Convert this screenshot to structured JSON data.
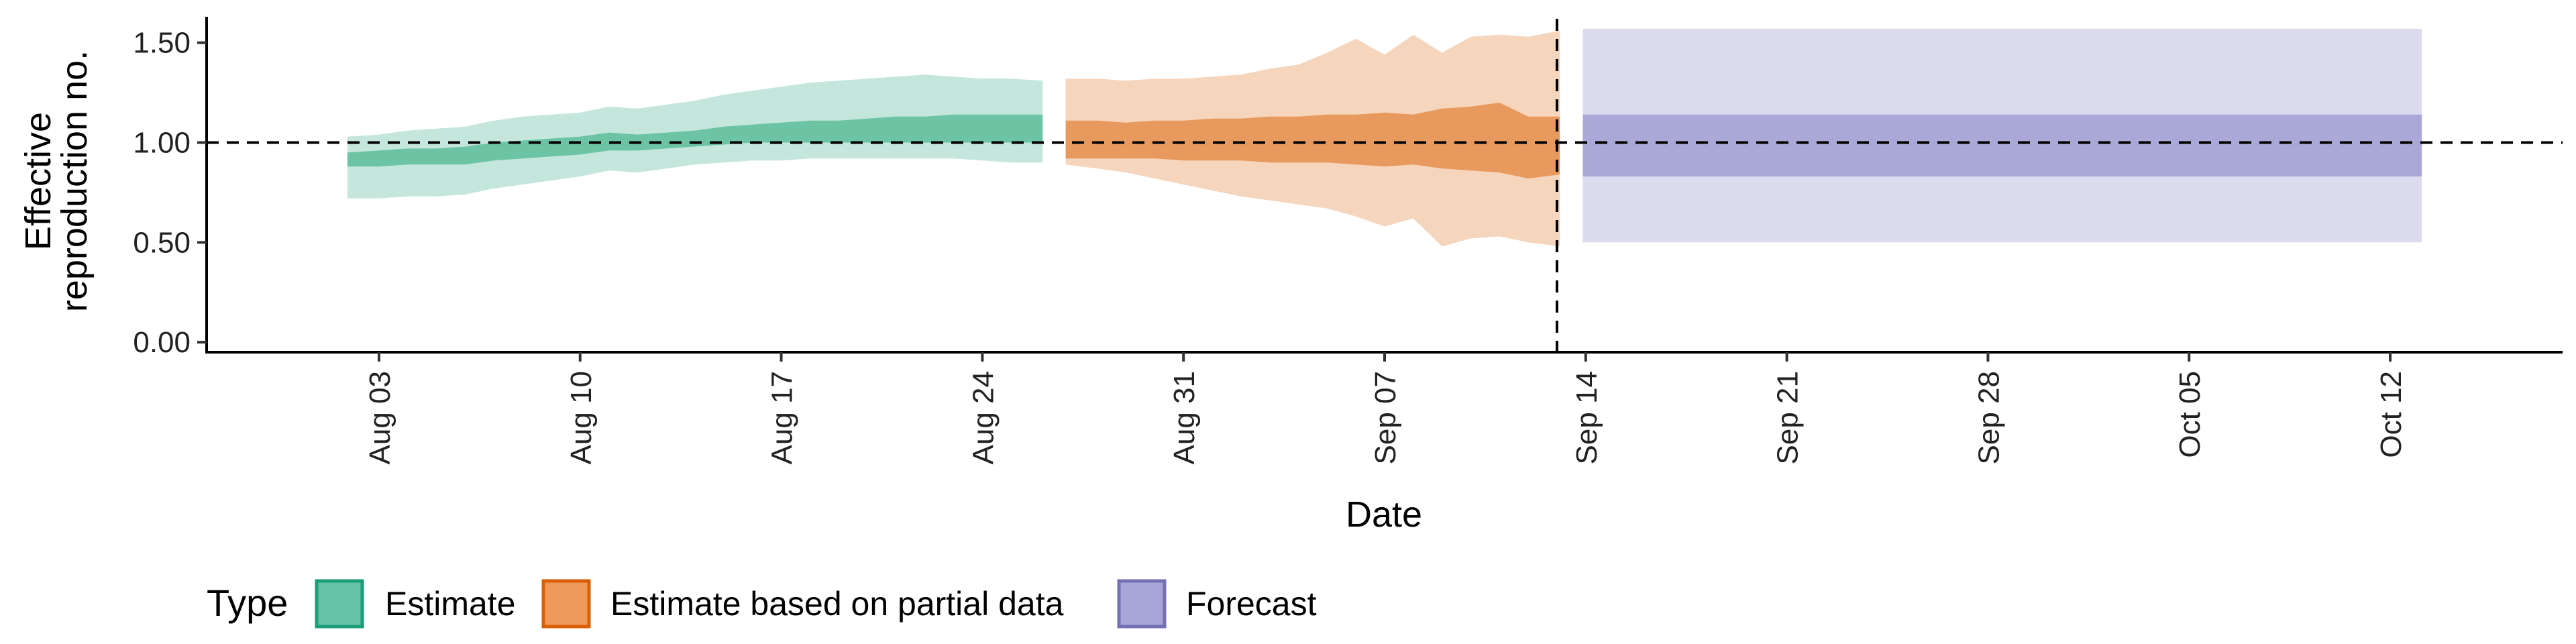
{
  "chart_data": {
    "type": "area",
    "title": "",
    "xlabel": "Date",
    "ylabel_lines": [
      "Effective",
      "reproduction no."
    ],
    "ylim": [
      -0.05,
      1.63
    ],
    "xlim": [
      "2020-07-28",
      "2020-10-18"
    ],
    "yticks": [
      0.0,
      0.5,
      1.0,
      1.5
    ],
    "ytick_labels": [
      "0.00",
      "0.50",
      "1.00",
      "1.50"
    ],
    "xticks": [
      "2020-08-03",
      "2020-08-10",
      "2020-08-17",
      "2020-08-24",
      "2020-08-31",
      "2020-09-07",
      "2020-09-14",
      "2020-09-21",
      "2020-09-28",
      "2020-10-05",
      "2020-10-12"
    ],
    "xtick_labels": [
      "Aug 03",
      "Aug 10",
      "Aug 17",
      "Aug 24",
      "Aug 31",
      "Sep 07",
      "Sep 14",
      "Sep 21",
      "Sep 28",
      "Oct 05",
      "Oct 12"
    ],
    "reference_line_y": 1.0,
    "vertical_line_x": "2020-09-13",
    "grid": false,
    "legend": {
      "title": "Type",
      "position": "bottom-left",
      "entries": [
        {
          "label": "Estimate",
          "fill": "#66c2a5",
          "stroke": "#1b9e77"
        },
        {
          "label": "Estimate based on partial data",
          "fill": "#ed9a5a",
          "stroke": "#d95f02"
        },
        {
          "label": "Forecast",
          "fill": "#a8a6d6",
          "stroke": "#7570b3"
        }
      ]
    },
    "series": [
      {
        "name": "Estimate",
        "outer_color": "#c4e6dc",
        "inner_color": "#6cc4a4",
        "x": [
          "2020-08-02",
          "2020-08-03",
          "2020-08-04",
          "2020-08-05",
          "2020-08-06",
          "2020-08-07",
          "2020-08-08",
          "2020-08-09",
          "2020-08-10",
          "2020-08-11",
          "2020-08-12",
          "2020-08-13",
          "2020-08-14",
          "2020-08-15",
          "2020-08-16",
          "2020-08-17",
          "2020-08-18",
          "2020-08-19",
          "2020-08-20",
          "2020-08-21",
          "2020-08-22",
          "2020-08-23",
          "2020-08-24",
          "2020-08-25",
          "2020-08-26"
        ],
        "lower_outer": [
          0.72,
          0.72,
          0.73,
          0.73,
          0.74,
          0.77,
          0.79,
          0.81,
          0.83,
          0.86,
          0.85,
          0.87,
          0.89,
          0.9,
          0.91,
          0.91,
          0.92,
          0.92,
          0.92,
          0.92,
          0.92,
          0.92,
          0.91,
          0.9,
          0.9
        ],
        "upper_outer": [
          1.03,
          1.04,
          1.06,
          1.07,
          1.08,
          1.11,
          1.13,
          1.14,
          1.15,
          1.18,
          1.17,
          1.19,
          1.21,
          1.24,
          1.26,
          1.28,
          1.3,
          1.31,
          1.32,
          1.33,
          1.34,
          1.33,
          1.32,
          1.32,
          1.31
        ],
        "lower_inner": [
          0.88,
          0.88,
          0.89,
          0.89,
          0.89,
          0.91,
          0.92,
          0.93,
          0.94,
          0.96,
          0.96,
          0.97,
          0.98,
          0.99,
          1.0,
          1.0,
          1.0,
          1.0,
          1.0,
          1.0,
          1.0,
          1.0,
          1.0,
          1.0,
          1.0
        ],
        "upper_inner": [
          0.95,
          0.96,
          0.97,
          0.97,
          0.98,
          1.0,
          1.01,
          1.02,
          1.03,
          1.05,
          1.04,
          1.05,
          1.06,
          1.08,
          1.09,
          1.1,
          1.11,
          1.11,
          1.12,
          1.13,
          1.13,
          1.14,
          1.14,
          1.14,
          1.14
        ]
      },
      {
        "name": "Estimate based on partial data",
        "outer_color": "#f6d5bd",
        "inner_color": "#e89a5e",
        "x": [
          "2020-08-27",
          "2020-08-28",
          "2020-08-29",
          "2020-08-30",
          "2020-08-31",
          "2020-09-01",
          "2020-09-02",
          "2020-09-03",
          "2020-09-04",
          "2020-09-05",
          "2020-09-06",
          "2020-09-07",
          "2020-09-08",
          "2020-09-09",
          "2020-09-10",
          "2020-09-11",
          "2020-09-12",
          "2020-09-13"
        ],
        "lower_outer": [
          0.89,
          0.87,
          0.85,
          0.82,
          0.79,
          0.76,
          0.73,
          0.71,
          0.69,
          0.67,
          0.63,
          0.58,
          0.62,
          0.48,
          0.52,
          0.53,
          0.5,
          0.48
        ],
        "upper_outer": [
          1.32,
          1.32,
          1.31,
          1.32,
          1.32,
          1.33,
          1.34,
          1.37,
          1.39,
          1.45,
          1.52,
          1.44,
          1.54,
          1.45,
          1.53,
          1.54,
          1.53,
          1.56
        ],
        "lower_inner": [
          0.92,
          0.92,
          0.92,
          0.92,
          0.91,
          0.91,
          0.91,
          0.9,
          0.9,
          0.9,
          0.89,
          0.88,
          0.89,
          0.87,
          0.86,
          0.85,
          0.82,
          0.84
        ],
        "upper_inner": [
          1.11,
          1.11,
          1.1,
          1.11,
          1.11,
          1.12,
          1.12,
          1.13,
          1.13,
          1.14,
          1.14,
          1.15,
          1.14,
          1.17,
          1.18,
          1.2,
          1.13,
          1.13
        ]
      },
      {
        "name": "Forecast",
        "outer_color": "#dcdbee",
        "inner_color": "#aaa8d6",
        "x": [
          "2020-09-14",
          "2020-10-13"
        ],
        "lower_outer": [
          0.5,
          0.5
        ],
        "upper_outer": [
          1.57,
          1.57
        ],
        "lower_inner": [
          0.83,
          0.83
        ],
        "upper_inner": [
          1.14,
          1.14
        ]
      }
    ]
  }
}
